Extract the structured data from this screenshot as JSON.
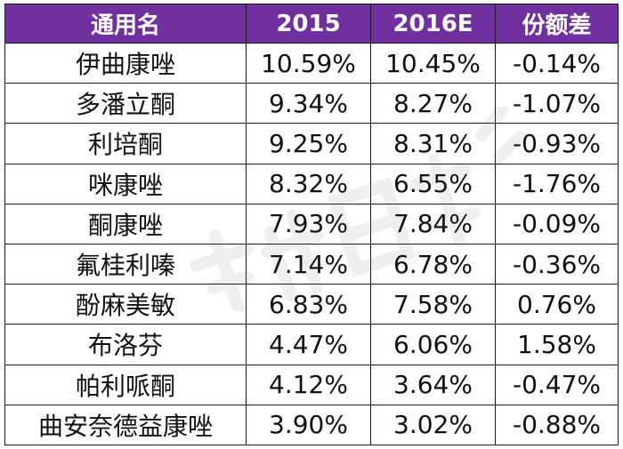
{
  "table": {
    "headers": [
      "通用名",
      "2015",
      "2016E",
      "份额差"
    ],
    "rows": [
      [
        "伊曲康唑",
        "10.59%",
        "10.45%",
        "-0.14%"
      ],
      [
        "多潘立酮",
        "9.34%",
        "8.27%",
        "-1.07%"
      ],
      [
        "利培酮",
        "9.25%",
        "8.31%",
        "-0.93%"
      ],
      [
        "咪康唑",
        "8.32%",
        "6.55%",
        "-1.76%"
      ],
      [
        "酮康唑",
        "7.93%",
        "7.84%",
        "-0.09%"
      ],
      [
        "氟桂利嗪",
        "7.14%",
        "6.78%",
        "-0.36%"
      ],
      [
        "酚麻美敏",
        "6.83%",
        "7.58%",
        "0.76%"
      ],
      [
        "布洛芬",
        "4.47%",
        "6.06%",
        "1.58%"
      ],
      [
        "帕利哌酮",
        "4.12%",
        "3.64%",
        "-0.47%"
      ],
      [
        "曲安奈德益康唑",
        "3.90%",
        "3.02%",
        "-0.88%"
      ]
    ]
  },
  "colors": {
    "header_bg": "#7030a0",
    "header_text": "#ffffff",
    "border": "#1a1a1a"
  }
}
